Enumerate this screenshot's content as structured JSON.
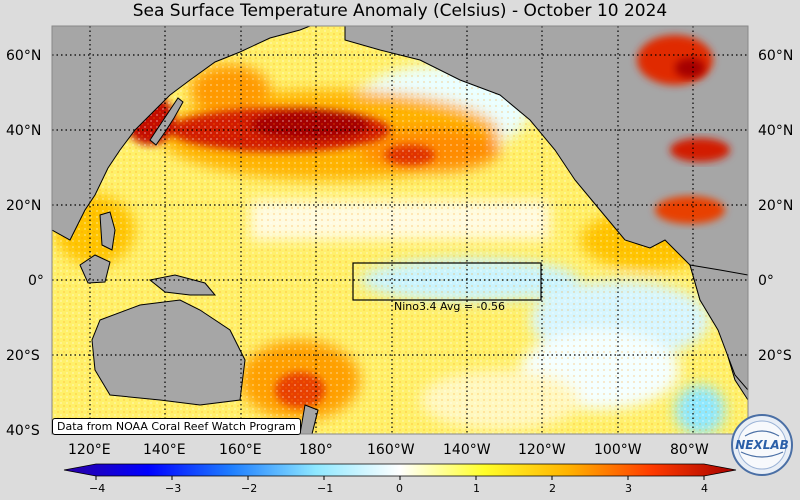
{
  "title": "Sea Surface Temperature Anomaly (Celsius) - October 10 2024",
  "lat_labels": [
    "60°N",
    "40°N",
    "20°N",
    "0°",
    "20°S",
    "40°S"
  ],
  "lon_labels": [
    "120°E",
    "140°E",
    "160°E",
    "180°",
    "160°W",
    "140°W",
    "120°W",
    "100°W",
    "80°W"
  ],
  "colorbar": {
    "ticks": [
      "−4",
      "−3",
      "−2",
      "−1",
      "0",
      "1",
      "2",
      "3",
      "4"
    ],
    "colors": [
      "#2b00a3",
      "#0000ff",
      "#1f7fff",
      "#8fe8ff",
      "#ffffff",
      "#ffff2a",
      "#ffb300",
      "#ff3b00",
      "#a50000"
    ]
  },
  "nino_box": {
    "label": "Nino3.4 Avg = -0.56",
    "value": -0.56,
    "lon_range": [
      "170°W",
      "120°W"
    ],
    "lat_range": [
      "5°S",
      "5°N"
    ]
  },
  "credit": "Data from NOAA Coral Reef Watch Program",
  "logo_text": "NEXLAB",
  "colors": {
    "land": "#a6a6a6",
    "background": "#dcdcdc",
    "warm": "#ff8c00",
    "hot": "#c40000",
    "cool": "#b8f0ff"
  }
}
